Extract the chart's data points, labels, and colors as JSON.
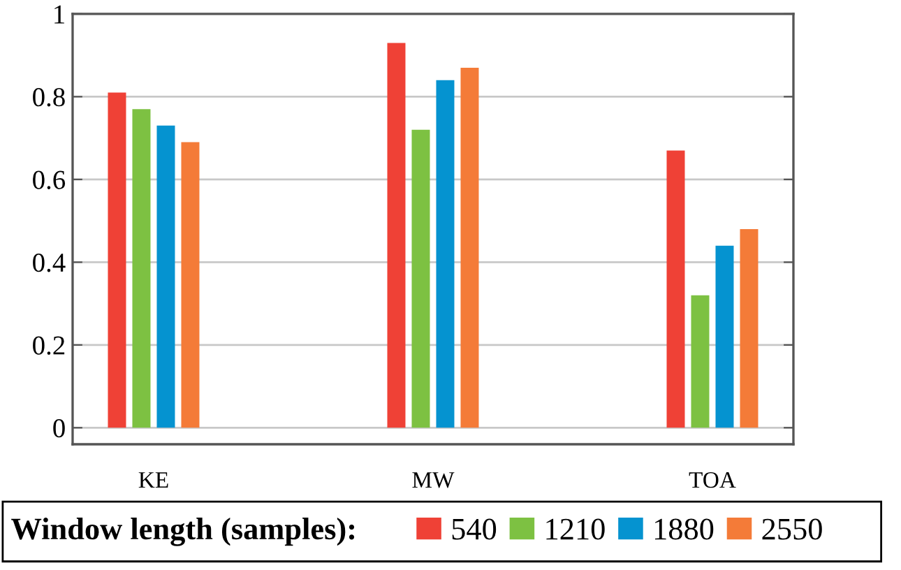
{
  "chart_data": {
    "type": "bar",
    "categories": [
      "KE",
      "MW",
      "TOA"
    ],
    "series": [
      {
        "name": "540",
        "color": "#ef4136",
        "values": [
          0.81,
          0.93,
          0.67
        ]
      },
      {
        "name": "1210",
        "color": "#7dc142",
        "values": [
          0.77,
          0.72,
          0.32
        ]
      },
      {
        "name": "1880",
        "color": "#0593d0",
        "values": [
          0.73,
          0.84,
          0.44
        ]
      },
      {
        "name": "2550",
        "color": "#f47b38",
        "values": [
          0.69,
          0.87,
          0.48
        ]
      }
    ],
    "legend_title": "Window length (samples):",
    "ylim": [
      -0.04,
      1
    ],
    "yticks": [
      0,
      0.2,
      0.4,
      0.6,
      0.8,
      1
    ],
    "grid": "y",
    "legend": "bottom"
  }
}
